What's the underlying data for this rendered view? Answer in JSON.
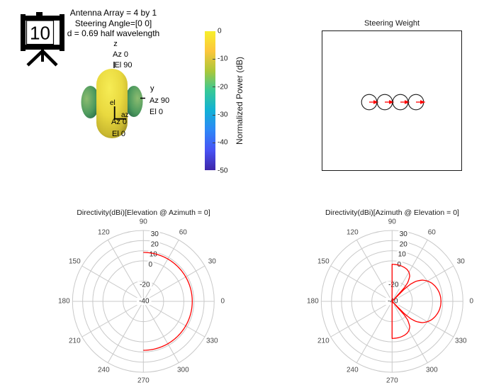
{
  "figure": {
    "background": "#ffffff"
  },
  "slide_counter": {
    "value": "10"
  },
  "annotation": {
    "lines": [
      "Antenna Array = 4 by 1",
      "Steering Angle=[0 0]",
      "d = 0.69 half wavelength"
    ]
  },
  "pattern3d": {
    "axis_labels": {
      "z": "z",
      "z_az": "Az 0",
      "z_el": "El 90",
      "y": "y",
      "y_az": "Az 90",
      "y_el": "El 0",
      "x_az": "Az 0",
      "x_el": "El 0",
      "el": "el",
      "az": "az"
    },
    "capsule_gradient": [
      "#f6ec55",
      "#e9d93f",
      "#c9b830",
      "#7e7418"
    ],
    "side_lobe_gradient": [
      "#8cbc70",
      "#4d9a5e",
      "#1d5c42"
    ]
  },
  "colorbar": {
    "label": "Normalized Power (dB)",
    "tick_labels": [
      "0",
      "-10",
      "-20",
      "-30",
      "-40",
      "-50"
    ],
    "gradient_top_to_bottom": [
      "#f7ef2b",
      "#fcc63c",
      "#acc739",
      "#37c897",
      "#12b1d6",
      "#2e87f7",
      "#4852f4",
      "#3e26a8"
    ]
  },
  "steering": {
    "title": "Steering Weight",
    "element_count": 4,
    "phases_deg": [
      0,
      0,
      0,
      0
    ],
    "circle_color": "#1a1a1a",
    "arrow_color": "#ff0000"
  },
  "chart_data": [
    {
      "type": "polar",
      "title": "Directivity(dBi)[Elevation @ Azimuth = 0]",
      "angle_unit": "deg",
      "angle_ticks": [
        0,
        30,
        60,
        90,
        120,
        150,
        180,
        210,
        240,
        270,
        300,
        330
      ],
      "r_ticks": [
        30,
        20,
        10,
        0,
        -20,
        -40
      ],
      "rlim": [
        -40,
        30
      ],
      "grid": true,
      "series": [
        {
          "name": "elevation-cut-directivity",
          "color": "#ff0000",
          "points": [
            [
              -90,
              8.3
            ],
            [
              -60,
              8.3
            ],
            [
              -30,
              8.3
            ],
            [
              0,
              8.3
            ],
            [
              30,
              8.3
            ],
            [
              60,
              8.3
            ],
            [
              90,
              8.3
            ]
          ]
        }
      ]
    },
    {
      "type": "polar",
      "title": "Directivity(dBi)[Azimuth @ Elevation = 0]",
      "angle_unit": "deg",
      "angle_ticks": [
        0,
        30,
        60,
        90,
        120,
        150,
        180,
        210,
        240,
        270,
        300,
        330
      ],
      "r_ticks": [
        30,
        20,
        10,
        0,
        -20,
        -40
      ],
      "rlim": [
        -40,
        30
      ],
      "grid": true,
      "series": [
        {
          "name": "azimuth-cut-directivity",
          "color": "#ff0000",
          "points": [
            [
              -90,
              -40
            ],
            [
              -90,
              -3.4
            ],
            [
              -85,
              -3.5
            ],
            [
              -80,
              -3.6
            ],
            [
              -75,
              -3.9
            ],
            [
              -70,
              -4.4
            ],
            [
              -65,
              -5.2
            ],
            [
              -60,
              -6.7
            ],
            [
              -55,
              -9.6
            ],
            [
              -50,
              -16.2
            ],
            [
              -48,
              -22.9
            ],
            [
              -46.5,
              -40
            ],
            [
              -45,
              -23.0
            ],
            [
              -43,
              -15.1
            ],
            [
              -40,
              -9.2
            ],
            [
              -35,
              -3.4
            ],
            [
              -30,
              0.2
            ],
            [
              -25,
              3.0
            ],
            [
              -20,
              4.9
            ],
            [
              -15,
              6.4
            ],
            [
              -10,
              7.5
            ],
            [
              -5,
              8.1
            ],
            [
              0,
              8.3
            ],
            [
              5,
              8.1
            ],
            [
              10,
              7.5
            ],
            [
              15,
              6.4
            ],
            [
              20,
              4.9
            ],
            [
              25,
              3.0
            ],
            [
              30,
              0.2
            ],
            [
              35,
              -3.4
            ],
            [
              40,
              -9.2
            ],
            [
              43,
              -15.1
            ],
            [
              45,
              -23.0
            ],
            [
              46.5,
              -40
            ],
            [
              48,
              -22.9
            ],
            [
              50,
              -16.2
            ],
            [
              55,
              -9.6
            ],
            [
              60,
              -6.7
            ],
            [
              65,
              -5.2
            ],
            [
              70,
              -4.4
            ],
            [
              75,
              -3.9
            ],
            [
              80,
              -3.6
            ],
            [
              85,
              -3.5
            ],
            [
              90,
              -3.4
            ],
            [
              90,
              -40
            ]
          ]
        }
      ]
    }
  ]
}
